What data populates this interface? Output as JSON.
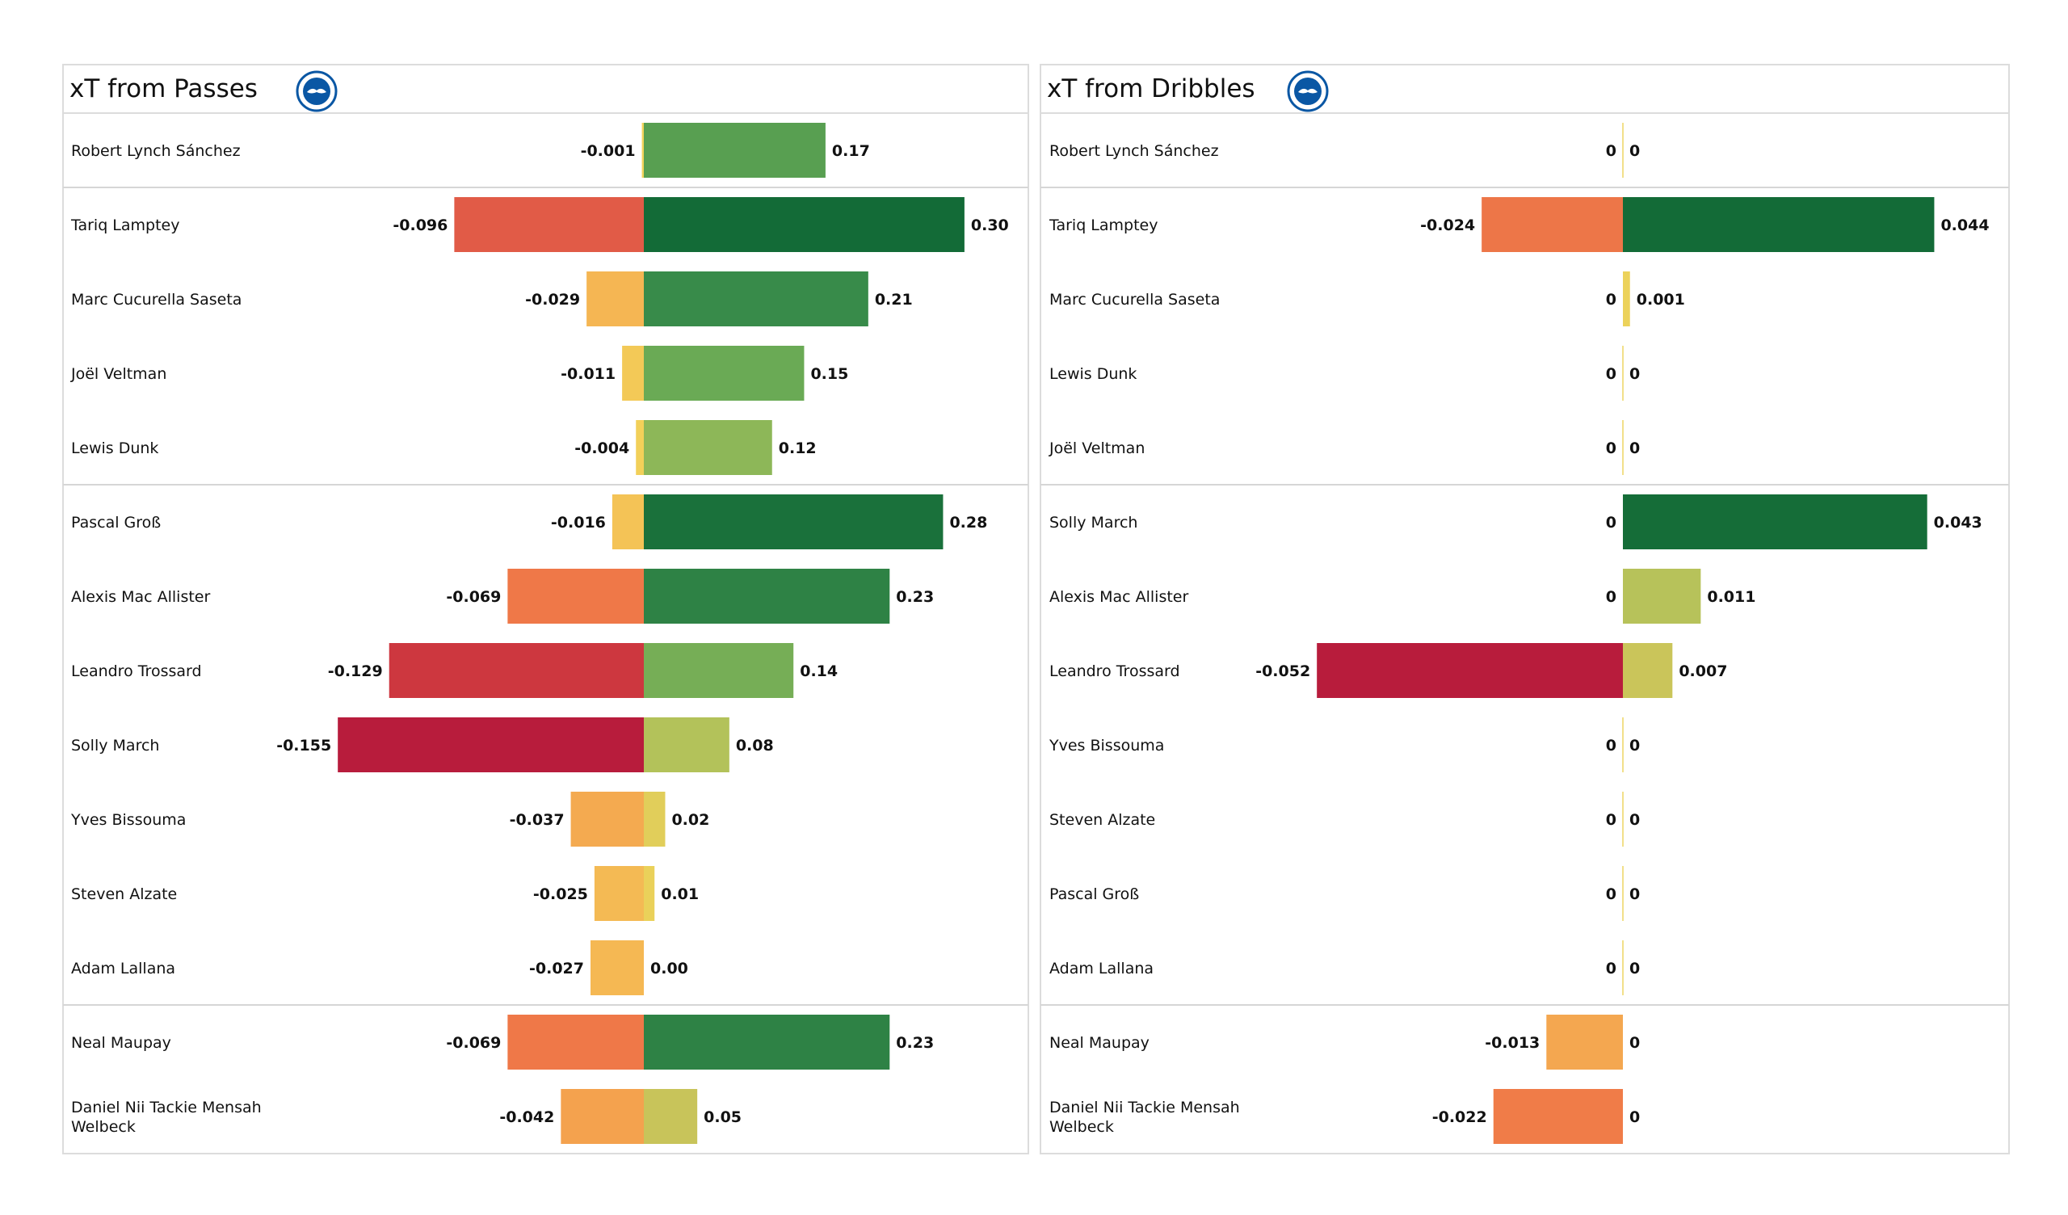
{
  "chart_data": [
    {
      "type": "bar",
      "orientation": "horizontal-diverging",
      "title": "xT from Passes",
      "logo": "brighton-crest",
      "groups_break_after": [
        0,
        4,
        11
      ],
      "rows": [
        {
          "name": "Robert Lynch Sánchez",
          "neg": -0.001,
          "pos": 0.17,
          "neg_label": "-0.001",
          "pos_label": "0.17"
        },
        {
          "name": "Tariq Lamptey",
          "neg": -0.096,
          "pos": 0.3,
          "neg_label": "-0.096",
          "pos_label": "0.30"
        },
        {
          "name": "Marc Cucurella Saseta",
          "neg": -0.029,
          "pos": 0.21,
          "neg_label": "-0.029",
          "pos_label": "0.21"
        },
        {
          "name": "Joël Veltman",
          "neg": -0.011,
          "pos": 0.15,
          "neg_label": "-0.011",
          "pos_label": "0.15"
        },
        {
          "name": "Lewis Dunk",
          "neg": -0.004,
          "pos": 0.12,
          "neg_label": "-0.004",
          "pos_label": "0.12"
        },
        {
          "name": "Pascal Groß",
          "neg": -0.016,
          "pos": 0.28,
          "neg_label": "-0.016",
          "pos_label": "0.28"
        },
        {
          "name": "Alexis Mac Allister",
          "neg": -0.069,
          "pos": 0.23,
          "neg_label": "-0.069",
          "pos_label": "0.23"
        },
        {
          "name": "Leandro Trossard",
          "neg": -0.129,
          "pos": 0.14,
          "neg_label": "-0.129",
          "pos_label": "0.14"
        },
        {
          "name": "Solly March",
          "neg": -0.155,
          "pos": 0.08,
          "neg_label": "-0.155",
          "pos_label": "0.08"
        },
        {
          "name": "Yves Bissouma",
          "neg": -0.037,
          "pos": 0.02,
          "neg_label": "-0.037",
          "pos_label": "0.02"
        },
        {
          "name": "Steven Alzate",
          "neg": -0.025,
          "pos": 0.01,
          "neg_label": "-0.025",
          "pos_label": "0.01"
        },
        {
          "name": "Adam Lallana",
          "neg": -0.027,
          "pos": 0.0,
          "neg_label": "-0.027",
          "pos_label": "0.00"
        },
        {
          "name": "Neal Maupay",
          "neg": -0.069,
          "pos": 0.23,
          "neg_label": "-0.069",
          "pos_label": "0.23"
        },
        {
          "name": "Daniel Nii Tackie Mensah Welbeck",
          "neg": -0.042,
          "pos": 0.05,
          "neg_label": "-0.042",
          "pos_label": "0.05"
        }
      ]
    },
    {
      "type": "bar",
      "orientation": "horizontal-diverging",
      "title": "xT from Dribbles",
      "logo": "brighton-crest",
      "groups_break_after": [
        0,
        4,
        11
      ],
      "rows": [
        {
          "name": "Robert Lynch Sánchez",
          "neg": 0,
          "pos": 0,
          "neg_label": "0",
          "pos_label": "0"
        },
        {
          "name": "Tariq Lamptey",
          "neg": -0.024,
          "pos": 0.044,
          "neg_label": "-0.024",
          "pos_label": "0.044"
        },
        {
          "name": "Marc Cucurella Saseta",
          "neg": 0,
          "pos": 0.001,
          "neg_label": "0",
          "pos_label": "0.001"
        },
        {
          "name": "Lewis Dunk",
          "neg": 0,
          "pos": 0,
          "neg_label": "0",
          "pos_label": "0"
        },
        {
          "name": "Joël Veltman",
          "neg": 0,
          "pos": 0,
          "neg_label": "0",
          "pos_label": "0"
        },
        {
          "name": "Solly March",
          "neg": 0,
          "pos": 0.043,
          "neg_label": "0",
          "pos_label": "0.043"
        },
        {
          "name": "Alexis Mac Allister",
          "neg": 0,
          "pos": 0.011,
          "neg_label": "0",
          "pos_label": "0.011"
        },
        {
          "name": "Leandro Trossard",
          "neg": -0.052,
          "pos": 0.007,
          "neg_label": "-0.052",
          "pos_label": "0.007"
        },
        {
          "name": "Yves Bissouma",
          "neg": 0,
          "pos": 0,
          "neg_label": "0",
          "pos_label": "0"
        },
        {
          "name": "Steven Alzate",
          "neg": 0,
          "pos": 0,
          "neg_label": "0",
          "pos_label": "0"
        },
        {
          "name": "Pascal Groß",
          "neg": 0,
          "pos": 0,
          "neg_label": "0",
          "pos_label": "0"
        },
        {
          "name": "Adam Lallana",
          "neg": 0,
          "pos": 0,
          "neg_label": "0",
          "pos_label": "0"
        },
        {
          "name": "Neal Maupay",
          "neg": -0.013,
          "pos": 0,
          "neg_label": "-0.013",
          "pos_label": "0"
        },
        {
          "name": "Daniel Nii Tackie Mensah Welbeck",
          "neg": -0.022,
          "pos": 0,
          "neg_label": "-0.022",
          "pos_label": "0"
        }
      ]
    }
  ],
  "colors": {
    "negative_scale": [
      "#f2d45a",
      "#f5b452",
      "#f28048",
      "#e35e48",
      "#d13c40",
      "#b81c3c"
    ],
    "positive_scale": [
      "#f2d45a",
      "#c8c45a",
      "#a5c05a",
      "#6aaa55",
      "#3d8f4c",
      "#247a40",
      "#136b37"
    ],
    "logo_blue": "#0a57a4"
  }
}
